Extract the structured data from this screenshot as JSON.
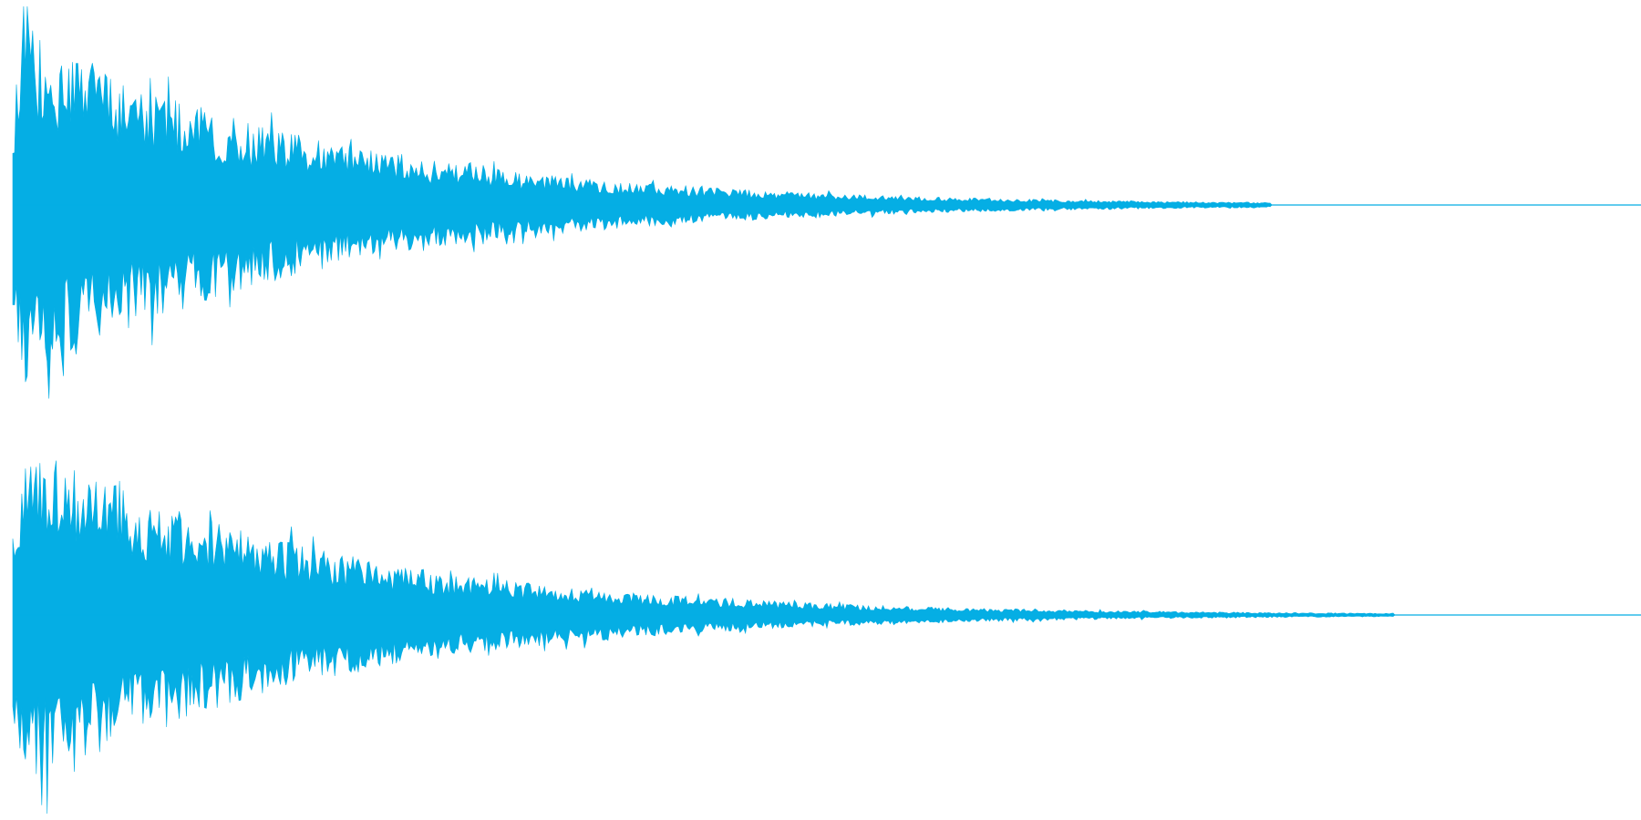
{
  "waveform": {
    "color": "#05aee4",
    "background": "#ffffff",
    "channels": [
      {
        "label": ""
      },
      {
        "label": ""
      }
    ]
  }
}
